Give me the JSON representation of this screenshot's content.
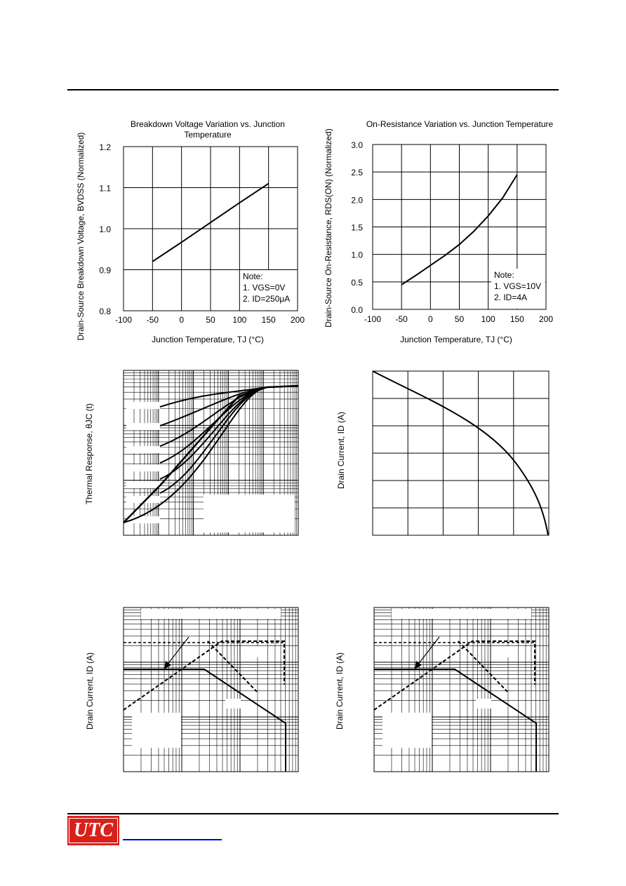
{
  "footer": {
    "logo_text": "UTC"
  },
  "charts": {
    "bv": {
      "title": "Breakdown Voltage Variation vs. Junction Temperature",
      "ylabel": "Drain-Source Breakdown Voltage, BVDSS (Normalized)",
      "xlabel": "Junction Temperature, TJ (°C)",
      "note": [
        "Note:",
        "1. VGS=0V",
        "2. ID=250μA"
      ]
    },
    "ron": {
      "title": "On-Resistance Variation vs. Junction Temperature",
      "ylabel": "Drain-Source On-Resistance, RDS(ON) (Normalized)",
      "xlabel": "Junction Temperature, TJ (°C)",
      "note": [
        "Note:",
        "1. VGS=10V",
        "2. ID=4A"
      ]
    },
    "thermal": {
      "ylabel": "Thermal Response, θJC (t)"
    },
    "id_temp": {
      "ylabel": "Drain Current, ID (A)"
    },
    "soa1": {
      "ylabel": "Drain Current, ID (A)"
    },
    "soa2": {
      "ylabel": "Drain Current, ID (A)"
    }
  },
  "chart_data": [
    {
      "type": "line",
      "title": "Breakdown Voltage Variation vs. Junction Temperature",
      "xlabel": "Junction Temperature, TJ (°C)",
      "ylabel": "Drain-Source Breakdown Voltage, BVDSS (Normalized)",
      "xlim": [
        -100,
        200
      ],
      "ylim": [
        0.8,
        1.2
      ],
      "xticks": [
        "-100",
        "-50",
        "0",
        "50",
        "100",
        "150",
        "200"
      ],
      "yticks": [
        "0.8",
        "0.9",
        "1.0",
        "1.1",
        "1.2"
      ],
      "x": [
        -50,
        0,
        50,
        100,
        150
      ],
      "y": [
        0.92,
        0.967,
        1.015,
        1.063,
        1.11
      ],
      "annotation": [
        "Note:",
        "1. VGS=0V",
        "2. ID=250μA"
      ],
      "grid": true
    },
    {
      "type": "line",
      "title": "On-Resistance Variation vs. Junction Temperature",
      "xlabel": "Junction Temperature, TJ (°C)",
      "ylabel": "Drain-Source On-Resistance, RDS(ON) (Normalized)",
      "xlim": [
        -100,
        200
      ],
      "ylim": [
        0.0,
        3.0
      ],
      "xticks": [
        "-100",
        "-50",
        "0",
        "50",
        "100",
        "150",
        "200"
      ],
      "yticks": [
        "0.0",
        "0.5",
        "1.0",
        "1.5",
        "2.0",
        "2.5",
        "3.0"
      ],
      "x": [
        -50,
        -25,
        0,
        25,
        50,
        75,
        100,
        125,
        150
      ],
      "y": [
        0.45,
        0.62,
        0.8,
        0.98,
        1.18,
        1.42,
        1.7,
        2.03,
        2.45
      ],
      "annotation": [
        "Note:",
        "1. VGS=10V",
        "2. ID=4A"
      ],
      "grid": true
    },
    {
      "type": "line",
      "ylabel": "Thermal Response, θJC (t)",
      "grid": true
    },
    {
      "type": "line",
      "ylabel": "Drain Current, ID (A)",
      "grid": true
    },
    {
      "type": "line",
      "ylabel": "Drain Current, ID (A)",
      "grid": true
    },
    {
      "type": "line",
      "ylabel": "Drain Current, ID (A)",
      "grid": true
    }
  ]
}
